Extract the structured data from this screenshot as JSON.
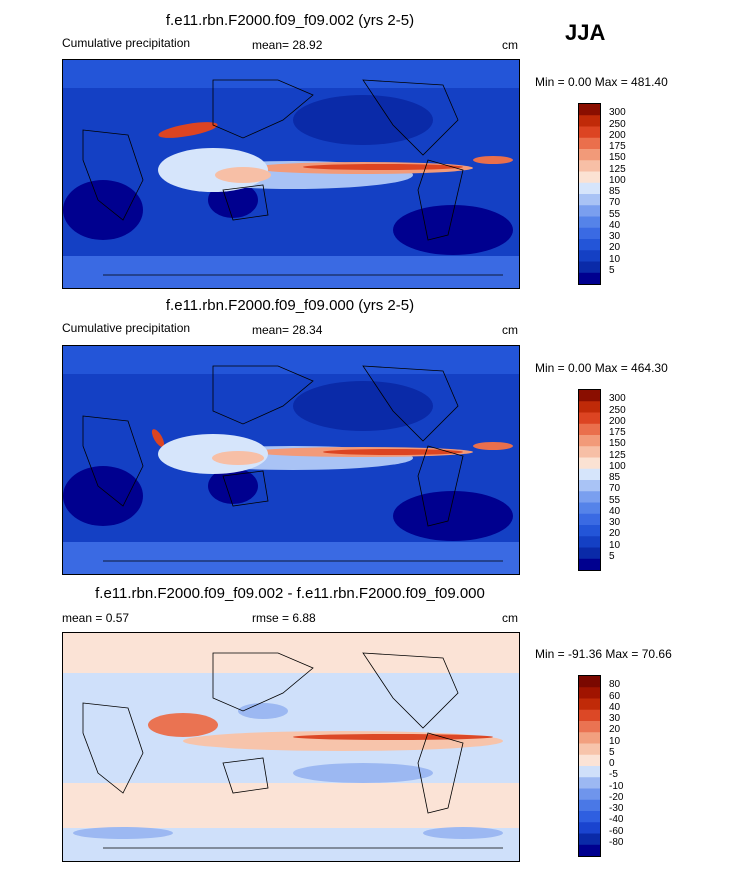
{
  "season": "JJA",
  "panels": [
    {
      "title": "f.e11.rbn.F2000.f09_f09.002 (yrs 2-5)",
      "left_label": "Cumulative precipitation",
      "mean_label": "mean=  28.92",
      "units": "cm",
      "minmax": "Min =   0.00 Max = 481.40",
      "colorbar_levels": [
        "300",
        "250",
        "200",
        "175",
        "150",
        "125",
        "100",
        "85",
        "70",
        "55",
        "40",
        "30",
        "20",
        "10",
        "5"
      ]
    },
    {
      "title": "f.e11.rbn.F2000.f09_f09.000 (yrs 2-5)",
      "left_label": "Cumulative precipitation",
      "mean_label": "mean=  28.34",
      "units": "cm",
      "minmax": "Min =   0.00 Max = 464.30",
      "colorbar_levels": [
        "300",
        "250",
        "200",
        "175",
        "150",
        "125",
        "100",
        "85",
        "70",
        "55",
        "40",
        "30",
        "20",
        "10",
        "5"
      ]
    },
    {
      "title": "f.e11.rbn.F2000.f09_f09.002 - f.e11.rbn.F2000.f09_f09.000",
      "left_label": "mean =   0.57",
      "mean_label": "rmse =   6.88",
      "units": "cm",
      "minmax": "Min = -91.36 Max =  70.66",
      "colorbar_levels": [
        "80",
        "60",
        "40",
        "30",
        "20",
        "10",
        "5",
        "0",
        "-5",
        "-10",
        "-20",
        "-30",
        "-40",
        "-60",
        "-80"
      ]
    }
  ],
  "chart_data": [
    {
      "type": "heatmap",
      "title": "f.e11.rbn.F2000.f09_f09.002 (yrs 2-5)",
      "variable": "Cumulative precipitation",
      "units": "cm",
      "mean": 28.92,
      "min": 0.0,
      "max": 481.4,
      "contour_levels": [
        5,
        10,
        20,
        30,
        40,
        55,
        70,
        85,
        100,
        125,
        150,
        175,
        200,
        250,
        300
      ],
      "colors": [
        "#00008f",
        "#0a2aa8",
        "#1440c4",
        "#2355d8",
        "#3a6ae3",
        "#5583e9",
        "#7a9fef",
        "#a9c3f5",
        "#d6e5fb",
        "#fbe2d3",
        "#f7bfa6",
        "#f29a79",
        "#ea6f4c",
        "#dc4422",
        "#c02a08",
        "#8a0e00"
      ]
    },
    {
      "type": "heatmap",
      "title": "f.e11.rbn.F2000.f09_f09.000 (yrs 2-5)",
      "variable": "Cumulative precipitation",
      "units": "cm",
      "mean": 28.34,
      "min": 0.0,
      "max": 464.3,
      "contour_levels": [
        5,
        10,
        20,
        30,
        40,
        55,
        70,
        85,
        100,
        125,
        150,
        175,
        200,
        250,
        300
      ],
      "colors": [
        "#00008f",
        "#0a2aa8",
        "#1440c4",
        "#2355d8",
        "#3a6ae3",
        "#5583e9",
        "#7a9fef",
        "#a9c3f5",
        "#d6e5fb",
        "#fbe2d3",
        "#f7bfa6",
        "#f29a79",
        "#ea6f4c",
        "#dc4422",
        "#c02a08",
        "#8a0e00"
      ]
    },
    {
      "type": "heatmap",
      "title": "f.e11.rbn.F2000.f09_f09.002 - f.e11.rbn.F2000.f09_f09.000",
      "units": "cm",
      "mean": 0.57,
      "rmse": 6.88,
      "min": -91.36,
      "max": 70.66,
      "contour_levels": [
        -80,
        -60,
        -40,
        -30,
        -20,
        -10,
        -5,
        0,
        5,
        10,
        20,
        30,
        40,
        60,
        80
      ],
      "colors": [
        "#00008f",
        "#0a2aa8",
        "#1a44cf",
        "#2f5fe0",
        "#4a78e6",
        "#6f95ec",
        "#9cb8f2",
        "#cfe0fa",
        "#fbe3d6",
        "#f7c4ab",
        "#f2a07f",
        "#ea7352",
        "#dc4826",
        "#c02a08",
        "#a01400",
        "#7a0800"
      ]
    }
  ]
}
